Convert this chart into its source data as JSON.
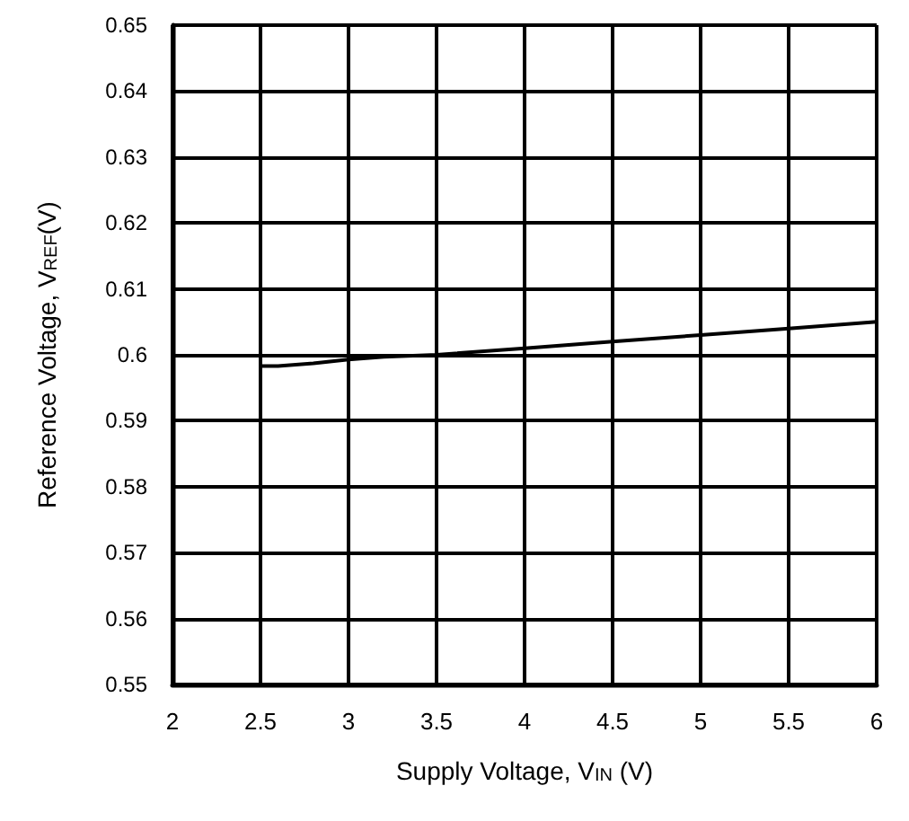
{
  "chart_data": {
    "type": "line",
    "xlabel": "Supply Voltage, V$_{IN}$ (V)",
    "ylabel": "Reference Voltage, V$_{REF}$(V)",
    "x": [
      2.5,
      2.6,
      2.8,
      3.0,
      3.2,
      3.5,
      4.0,
      4.5,
      5.0,
      5.5,
      6.0
    ],
    "series": [
      {
        "color": "#000000",
        "values": [
          0.5983,
          0.5983,
          0.5987,
          0.5993,
          0.5997,
          0.6,
          0.601,
          0.602,
          0.603,
          0.604,
          0.605
        ]
      }
    ],
    "xlim": [
      2,
      6
    ],
    "xticks": [
      2,
      2.5,
      3,
      3.5,
      4,
      4.5,
      5,
      5.5,
      6
    ],
    "ylim": [
      0.55,
      0.65
    ],
    "yticks": [
      0.55,
      0.56,
      0.57,
      0.58,
      0.59,
      0.6,
      0.61,
      0.62,
      0.63,
      0.64,
      0.65
    ],
    "grid": true,
    "marker": "none",
    "line_style": "solid"
  }
}
